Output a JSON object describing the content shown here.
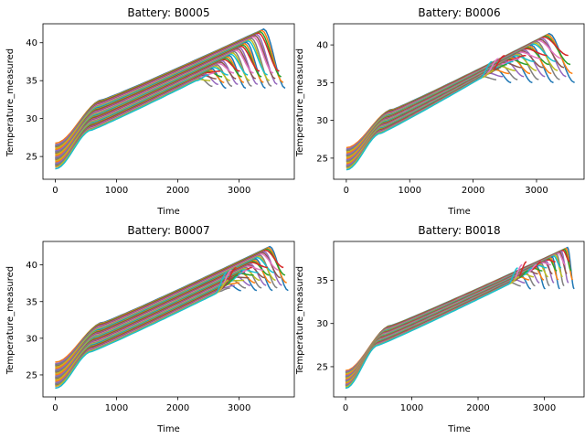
{
  "figure": {
    "palette": [
      "#1f77b4",
      "#ff7f0e",
      "#2ca02c",
      "#d62728",
      "#9467bd",
      "#8c564b",
      "#e377c2",
      "#7f7f7f",
      "#bcbd22",
      "#17becf"
    ]
  },
  "chart_data": [
    {
      "type": "line",
      "title": "Battery: B0005",
      "xlabel": "Time",
      "ylabel": "Temperature_measured",
      "xlim": [
        -200,
        3900
      ],
      "ylim": [
        22,
        42.5
      ],
      "xticks": [
        0,
        1000,
        2000,
        3000
      ],
      "yticks": [
        25,
        30,
        35,
        40
      ],
      "grid": false,
      "curve_profile": {
        "n_series": 40,
        "start_temp": [
          23.2,
          27.0
        ],
        "plateau_x": [
          600,
          780
        ],
        "plateau_temp": [
          28.5,
          32.5
        ],
        "peak_x": [
          2300,
          3400
        ],
        "peak_temp": [
          35.0,
          41.8
        ],
        "end_x": [
          2500,
          3750
        ],
        "end_temp": [
          34.0,
          36.5
        ]
      }
    },
    {
      "type": "line",
      "title": "Battery: B0006",
      "xlabel": "Time",
      "ylabel": "Temperature_measured",
      "xlim": [
        -200,
        3750
      ],
      "ylim": [
        22.2,
        42.8
      ],
      "xticks": [
        0,
        1000,
        2000,
        3000
      ],
      "yticks": [
        25,
        30,
        35,
        40
      ],
      "grid": false,
      "curve_profile": {
        "n_series": 40,
        "start_temp": [
          23.3,
          26.6
        ],
        "plateau_x": [
          550,
          750
        ],
        "plateau_temp": [
          28.3,
          31.5
        ],
        "peak_x": [
          2100,
          3200
        ],
        "peak_temp": [
          35.5,
          41.5
        ],
        "end_x": [
          2300,
          3600
        ],
        "end_temp": [
          35.0,
          39.0
        ]
      }
    },
    {
      "type": "line",
      "title": "Battery: B0007",
      "xlabel": "Time",
      "ylabel": "Temperature_measured",
      "xlim": [
        -200,
        3900
      ],
      "ylim": [
        22,
        43.2
      ],
      "xticks": [
        0,
        1000,
        2000,
        3000
      ],
      "yticks": [
        25,
        30,
        35,
        40
      ],
      "grid": false,
      "curve_profile": {
        "n_series": 40,
        "start_temp": [
          23.0,
          27.0
        ],
        "plateau_x": [
          600,
          800
        ],
        "plateau_temp": [
          28.2,
          32.2
        ],
        "peak_x": [
          2600,
          3500
        ],
        "peak_temp": [
          36.0,
          42.5
        ],
        "end_x": [
          2800,
          3800
        ],
        "end_temp": [
          36.5,
          40.0
        ]
      }
    },
    {
      "type": "line",
      "title": "Battery: B0018",
      "xlabel": "Time",
      "ylabel": "Temperature_measured",
      "xlim": [
        -180,
        3600
      ],
      "ylim": [
        21.5,
        39.5
      ],
      "xticks": [
        0,
        1000,
        2000,
        3000
      ],
      "yticks": [
        25,
        30,
        35
      ],
      "grid": false,
      "curve_profile": {
        "n_series": 40,
        "start_temp": [
          22.4,
          24.7
        ],
        "plateau_x": [
          500,
          700
        ],
        "plateau_temp": [
          27.5,
          29.8
        ],
        "peak_x": [
          2450,
          3350
        ],
        "peak_temp": [
          34.5,
          38.8
        ],
        "end_x": [
          2600,
          3450
        ],
        "end_temp": [
          34.0,
          37.5
        ]
      }
    }
  ]
}
